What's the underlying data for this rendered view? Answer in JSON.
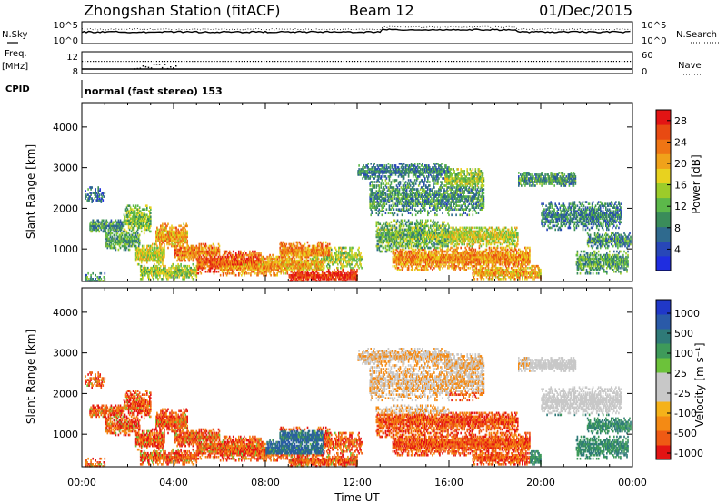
{
  "header": {
    "title": "Zhongshan Station (fitACF)",
    "beam": "Beam 12",
    "date": "01/Dec/2015"
  },
  "top_panels": {
    "nsky_label": "N.Sky",
    "nsky_ticks": [
      "10^5",
      "10^0"
    ],
    "nsearch_label": "N.Search",
    "nsearch_ticks": [
      "10^5",
      "10^0"
    ],
    "freq_label_1": "Freq.",
    "freq_label_2": "[MHz]",
    "freq_ticks": [
      "12",
      "8"
    ],
    "nave_label": "Nave",
    "nave_ticks": [
      "60",
      "0"
    ],
    "cpid_label": "CPID",
    "cpid_text": "normal (fast stereo) 153"
  },
  "colors": {
    "power": [
      "#1f2de0",
      "#2847b8",
      "#2f6a8e",
      "#3a8c5a",
      "#5cb84a",
      "#9ccc2a",
      "#e8d21f",
      "#f0a21a",
      "#ef7514",
      "#e84a12",
      "#e31414"
    ],
    "velocity": [
      "#e31414",
      "#ef5a14",
      "#f48a14",
      "#f5b21a",
      "#c8c8c8",
      "#c8c8c8",
      "#6cc23a",
      "#3e9a5a",
      "#2f7a78",
      "#2a5aa8",
      "#2038c8"
    ]
  },
  "chart_data": [
    {
      "type": "heatmap",
      "quantity": "power",
      "xlabel": "",
      "ylabel": "Slant Range [km]",
      "y_ticks": [
        "1000",
        "2000",
        "3000",
        "4000"
      ],
      "ylim": [
        200,
        4600
      ],
      "colorbar_label": "Power [dB]",
      "colorbar_ticks": [
        "4",
        "8",
        "12",
        "16",
        "20",
        "24",
        "28"
      ],
      "colorbar_range": [
        0,
        30
      ]
    },
    {
      "type": "heatmap",
      "quantity": "velocity",
      "xlabel": "Time UT",
      "ylabel": "Slant Range [km]",
      "x_ticks": [
        "00:00",
        "04:00",
        "08:00",
        "12:00",
        "16:00",
        "20:00",
        "00:00"
      ],
      "xlim_hours": [
        0,
        24
      ],
      "y_ticks": [
        "1000",
        "2000",
        "3000",
        "4000"
      ],
      "ylim": [
        200,
        4600
      ],
      "colorbar_label": "Velocity [m s⁻¹]",
      "colorbar_ticks": [
        "1000",
        "500",
        "100",
        "25",
        "-25",
        "-100",
        "-500",
        "-1000"
      ]
    }
  ]
}
